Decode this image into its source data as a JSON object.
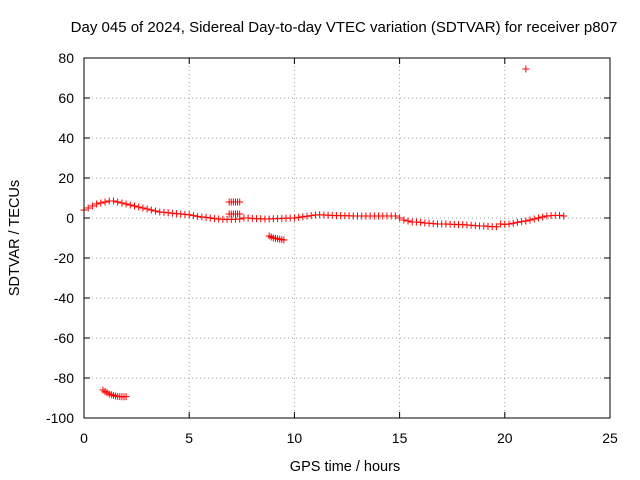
{
  "chart_data": {
    "type": "scatter",
    "title": "Day 045 of 2024, Sidereal Day-to-day VTEC variation (SDTVAR) for receiver p807",
    "xlabel": "GPS time / hours",
    "ylabel": "SDTVAR / TECUs",
    "xlim": [
      0,
      25
    ],
    "ylim": [
      -100,
      80
    ],
    "xticks": [
      0,
      5,
      10,
      15,
      20,
      25
    ],
    "xtick_labels": [
      "0",
      "5",
      "10",
      "15",
      "20",
      "25"
    ],
    "yticks": [
      -100,
      -80,
      -60,
      -40,
      -20,
      0,
      20,
      40,
      60,
      80
    ],
    "ytick_labels": [
      "-100",
      "-80",
      "-60",
      "-40",
      "-20",
      "0",
      "20",
      "40",
      "60",
      "80"
    ],
    "grid": true,
    "marker": "+",
    "color": "#ff0000",
    "series": [
      {
        "name": "SDTVAR",
        "x": [
          0.0,
          0.2,
          0.4,
          0.6,
          0.8,
          1.0,
          1.2,
          1.4,
          1.6,
          1.8,
          2.0,
          2.2,
          2.4,
          2.6,
          2.8,
          3.0,
          3.2,
          3.4,
          3.6,
          3.8,
          4.0,
          4.2,
          4.4,
          4.6,
          4.8,
          5.0,
          5.2,
          5.4,
          5.6,
          5.8,
          6.0,
          6.2,
          6.4,
          6.6,
          6.8,
          7.0,
          7.2,
          7.4,
          7.6,
          7.8,
          8.0,
          8.2,
          8.4,
          8.6,
          8.8,
          9.0,
          9.2,
          9.4,
          9.6,
          9.8,
          10.0,
          10.2,
          10.4,
          10.6,
          10.8,
          11.0,
          11.2,
          11.4,
          11.6,
          11.8,
          12.0,
          12.2,
          12.4,
          12.6,
          12.8,
          13.0,
          13.2,
          13.4,
          13.6,
          13.8,
          14.0,
          14.2,
          14.4,
          14.6,
          14.8,
          15.0,
          15.2,
          15.4,
          15.6,
          15.8,
          16.0,
          16.2,
          16.4,
          16.6,
          16.8,
          17.0,
          17.2,
          17.4,
          17.6,
          17.8,
          18.0,
          18.2,
          18.4,
          18.6,
          18.8,
          19.0,
          19.2,
          19.4,
          19.6,
          19.8,
          20.0,
          20.2,
          20.4,
          20.6,
          20.8,
          21.0,
          21.2,
          21.4,
          21.6,
          21.8,
          22.0,
          22.2,
          22.4,
          22.6,
          22.8,
          6.9,
          7.0,
          7.1,
          7.2,
          7.3,
          7.4,
          6.9,
          7.0,
          7.1,
          7.2,
          7.3,
          7.4,
          8.8,
          8.9,
          9.0,
          9.1,
          9.2,
          9.3,
          9.4,
          9.5,
          0.9,
          1.0,
          1.1,
          1.2,
          1.3,
          1.4,
          1.5,
          1.6,
          1.7,
          1.8,
          1.9,
          2.0,
          21.0
        ],
        "y": [
          4,
          5,
          6,
          7,
          7.5,
          8,
          8.5,
          8.5,
          8,
          7.5,
          7,
          6.5,
          6,
          5.5,
          5,
          4.5,
          4,
          3.5,
          3,
          2.8,
          2.6,
          2.4,
          2.2,
          2,
          1.8,
          1.6,
          1.2,
          0.8,
          0.5,
          0.3,
          0,
          -0.3,
          -0.5,
          -0.6,
          -0.7,
          -0.7,
          -0.6,
          -0.5,
          0,
          0,
          -0.2,
          -0.3,
          -0.4,
          -0.5,
          -0.5,
          -0.4,
          -0.3,
          -0.2,
          -0.1,
          0,
          0,
          0.3,
          0.6,
          0.9,
          1.2,
          1.5,
          1.6,
          1.5,
          1.4,
          1.3,
          1.2,
          1.2,
          1.1,
          1.1,
          1.0,
          1.0,
          1.0,
          1.0,
          1.0,
          1.0,
          1.0,
          1.0,
          1.0,
          1.0,
          1.0,
          0,
          -1.0,
          -1.5,
          -2,
          -2,
          -2.2,
          -2.5,
          -2.6,
          -2.8,
          -3,
          -3,
          -3,
          -3.1,
          -3.2,
          -3.3,
          -3.3,
          -3.5,
          -3.6,
          -3.8,
          -4,
          -4,
          -4.2,
          -4.3,
          -4.4,
          -3,
          -3.2,
          -3,
          -2.6,
          -2.2,
          -1.8,
          -1.5,
          -1,
          -0.5,
          0,
          0.5,
          1,
          1.2,
          1.3,
          1.3,
          1.0,
          8,
          8,
          8,
          8,
          8,
          8,
          2,
          2,
          2,
          2,
          2,
          2,
          -9,
          -9.5,
          -10,
          -10.2,
          -10.4,
          -10.6,
          -10.8,
          -11,
          -86,
          -86.8,
          -87.4,
          -88,
          -88.4,
          -88.7,
          -89,
          -89.2,
          -89.3,
          -89.4,
          -89.4,
          -89.3,
          74.5
        ]
      }
    ]
  }
}
